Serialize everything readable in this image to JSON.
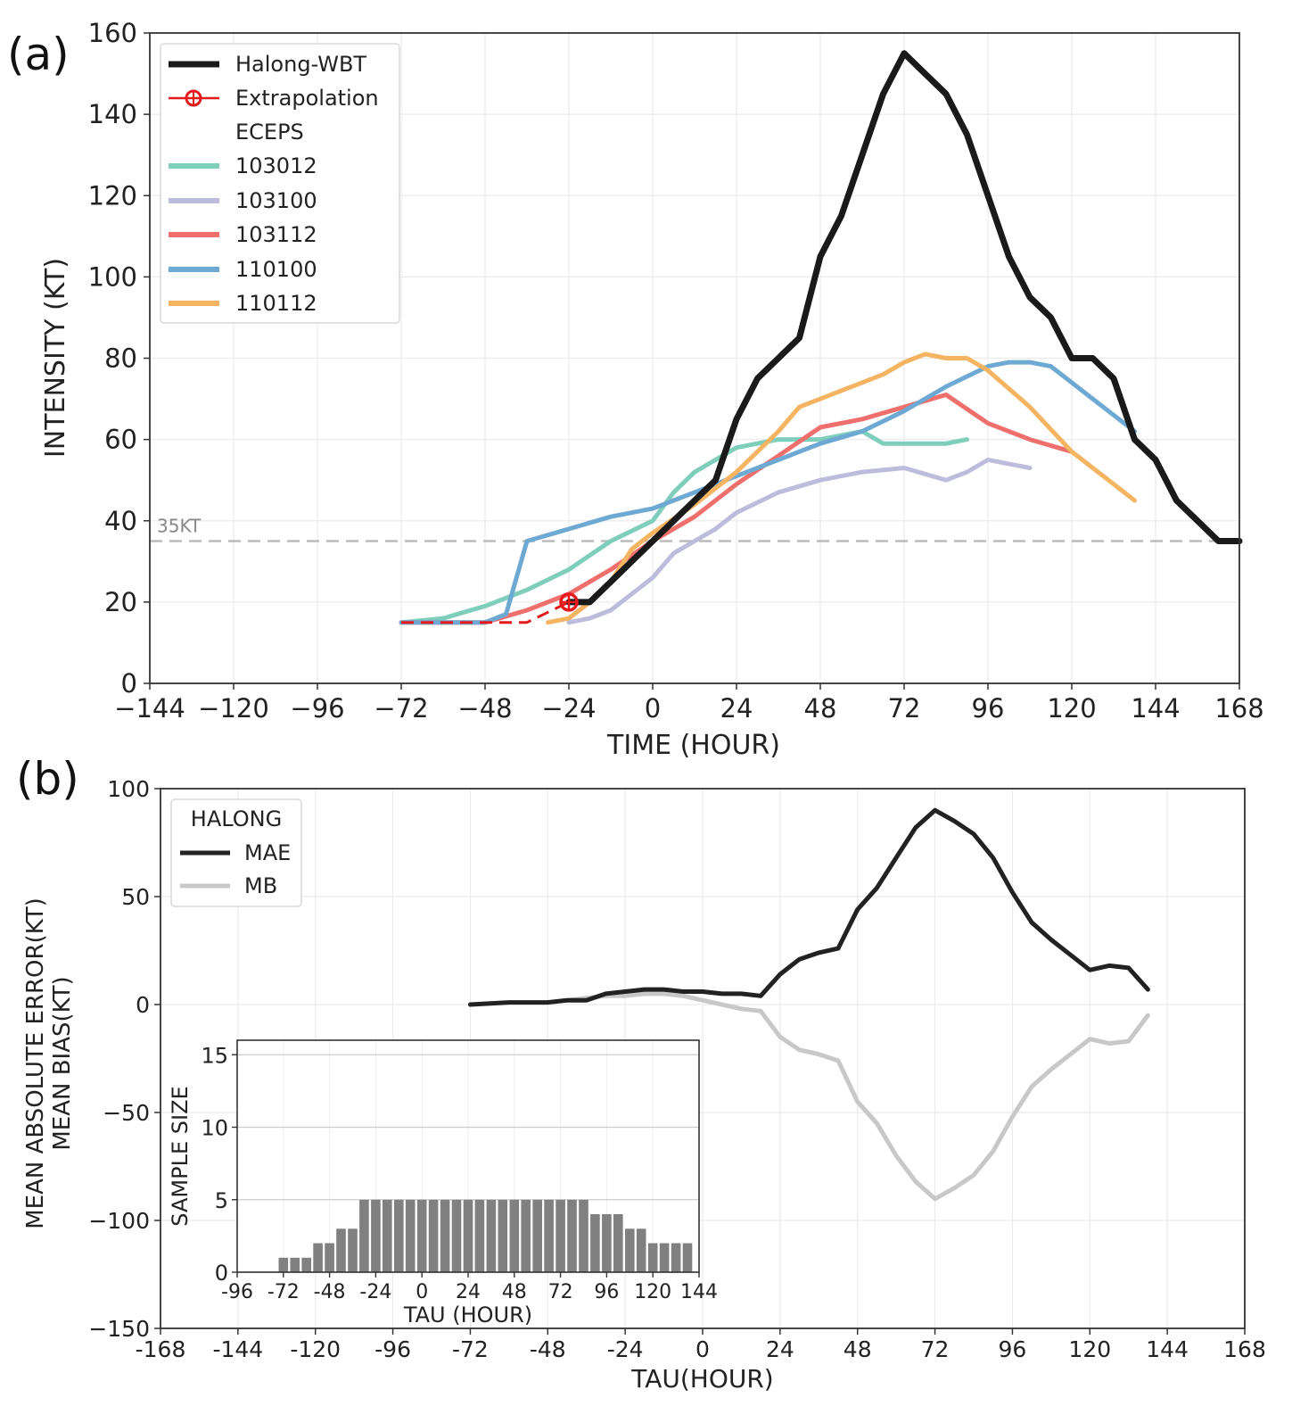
{
  "chart_data": [
    {
      "panel_label": "(a)",
      "type": "line",
      "xlabel": "TIME (HOUR)",
      "ylabel": "INTENSITY (KT)",
      "xlim": [
        -144,
        168
      ],
      "ylim": [
        0,
        160
      ],
      "x_ticks": [
        -144,
        -120,
        -96,
        -72,
        -48,
        -24,
        0,
        24,
        48,
        72,
        96,
        120,
        144,
        168
      ],
      "x_tick_labels": [
        "−144",
        "−120",
        "−96",
        "−72",
        "−48",
        "−24",
        "0",
        "24",
        "48",
        "72",
        "96",
        "120",
        "144",
        "168"
      ],
      "y_ticks": [
        0,
        20,
        40,
        60,
        80,
        100,
        120,
        140,
        160
      ],
      "y_tick_labels": [
        "0",
        "20",
        "40",
        "60",
        "80",
        "100",
        "120",
        "140",
        "160"
      ],
      "grid": true,
      "legend_position": "top-left",
      "legend_group_title": "ECEPS",
      "reference_line": {
        "y": 35,
        "label": "35KT",
        "color": "#bbbbbb"
      },
      "series": [
        {
          "name": "Halong-WBT",
          "color": "#1a1a1a",
          "x": [
            -24,
            -18,
            -12,
            -6,
            0,
            6,
            12,
            18,
            24,
            30,
            36,
            42,
            48,
            54,
            60,
            66,
            72,
            78,
            84,
            90,
            96,
            102,
            108,
            114,
            120,
            126,
            132,
            138,
            144,
            150,
            156,
            162,
            168
          ],
          "y": [
            20,
            20,
            25,
            30,
            35,
            40,
            45,
            50,
            65,
            75,
            80,
            85,
            105,
            115,
            130,
            145,
            155,
            150,
            145,
            135,
            120,
            105,
            95,
            90,
            80,
            80,
            75,
            60,
            55,
            45,
            40,
            35,
            35
          ]
        },
        {
          "name": "Extrapolation",
          "color": "#e41a1c",
          "x": [
            -72,
            -60,
            -48,
            -36,
            -24
          ],
          "y": [
            15,
            15,
            15,
            15,
            20
          ]
        },
        {
          "name": "103012",
          "color": "#7fcdbb",
          "x": [
            -72,
            -60,
            -48,
            -36,
            -24,
            -12,
            0,
            6,
            12,
            24,
            36,
            48,
            60,
            66,
            72,
            78,
            84,
            90
          ],
          "y": [
            15,
            16,
            19,
            23,
            28,
            35,
            40,
            47,
            52,
            58,
            60,
            60,
            62,
            59,
            59,
            59,
            59,
            60
          ]
        },
        {
          "name": "103100",
          "color": "#bcbddc",
          "x": [
            -24,
            -18,
            -12,
            -6,
            0,
            6,
            12,
            18,
            24,
            36,
            48,
            60,
            72,
            84,
            90,
            96,
            108
          ],
          "y": [
            15,
            16,
            18,
            22,
            26,
            32,
            35,
            38,
            42,
            47,
            50,
            52,
            53,
            50,
            52,
            55,
            53
          ]
        },
        {
          "name": "103112",
          "color": "#ef6f6c",
          "x": [
            -72,
            -60,
            -48,
            -36,
            -24,
            -12,
            0,
            12,
            24,
            36,
            48,
            60,
            72,
            84,
            96,
            108,
            120
          ],
          "y": [
            15,
            15,
            15,
            18,
            22,
            28,
            35,
            41,
            49,
            56,
            63,
            65,
            68,
            71,
            64,
            60,
            57
          ]
        },
        {
          "name": "110100",
          "color": "#6ea9d4",
          "x": [
            -72,
            -60,
            -48,
            -42,
            -36,
            -24,
            -12,
            0,
            12,
            24,
            36,
            48,
            60,
            72,
            84,
            96,
            102,
            108,
            114,
            120,
            126,
            132,
            138
          ],
          "y": [
            15,
            15,
            15,
            17,
            35,
            38,
            41,
            43,
            47,
            51,
            55,
            59,
            62,
            67,
            73,
            78,
            79,
            79,
            78,
            74,
            70,
            66,
            62
          ]
        },
        {
          "name": "110112",
          "color": "#f5b462",
          "x": [
            -30,
            -24,
            -18,
            -12,
            -6,
            0,
            12,
            24,
            36,
            42,
            48,
            60,
            66,
            72,
            78,
            84,
            90,
            96,
            108,
            120,
            132,
            138
          ],
          "y": [
            15,
            16,
            20,
            25,
            33,
            37,
            44,
            52,
            62,
            68,
            70,
            74,
            76,
            79,
            81,
            80,
            80,
            77,
            68,
            57,
            49,
            45
          ]
        }
      ]
    },
    {
      "panel_label": "(b)",
      "type": "line",
      "xlabel": "TAU(HOUR)",
      "ylabel": "MEAN ABSOLUTE ERROR(KT)",
      "ylabel2": "MEAN BIAS(KT)",
      "xlim": [
        -168,
        168
      ],
      "ylim": [
        -150,
        100
      ],
      "x_ticks": [
        -168,
        -144,
        -120,
        -96,
        -72,
        -48,
        -24,
        0,
        24,
        48,
        72,
        96,
        120,
        144,
        168
      ],
      "x_tick_labels": [
        "-168",
        "-144",
        "-120",
        "-96",
        "-72",
        "-48",
        "-24",
        "0",
        "24",
        "48",
        "72",
        "96",
        "120",
        "144",
        "168"
      ],
      "y_ticks": [
        100,
        50,
        0,
        -50,
        -100,
        -150
      ],
      "y_tick_labels": [
        "100",
        "50",
        "0",
        "−50",
        "−100",
        "−150"
      ],
      "grid": true,
      "legend_position": "top-left",
      "legend_title": "HALONG",
      "series": [
        {
          "name": "MAE",
          "color": "#222222",
          "x": [
            -72,
            -60,
            -48,
            -42,
            -36,
            -30,
            -24,
            -18,
            -12,
            -6,
            0,
            6,
            12,
            18,
            24,
            30,
            36,
            42,
            48,
            54,
            60,
            66,
            72,
            78,
            84,
            90,
            96,
            102,
            108,
            114,
            120,
            126,
            132,
            138
          ],
          "y": [
            0,
            1,
            1,
            2,
            2,
            5,
            6,
            7,
            7,
            6,
            6,
            5,
            5,
            4,
            14,
            21,
            24,
            26,
            44,
            54,
            68,
            82,
            90,
            85,
            79,
            68,
            52,
            38,
            30,
            23,
            16,
            18,
            17,
            7
          ]
        },
        {
          "name": "MB",
          "color": "#c8c8c8",
          "x": [
            -42,
            -36,
            -30,
            -24,
            -18,
            -12,
            -6,
            0,
            6,
            12,
            18,
            24,
            30,
            36,
            42,
            48,
            54,
            60,
            66,
            72,
            78,
            84,
            90,
            96,
            102,
            108,
            114,
            120,
            126,
            132,
            138
          ],
          "y": [
            2,
            3,
            4,
            4,
            5,
            5,
            4,
            2,
            0,
            -2,
            -3,
            -15,
            -21,
            -23,
            -26,
            -45,
            -55,
            -70,
            -82,
            -90,
            -85,
            -79,
            -68,
            -52,
            -38,
            -30,
            -23,
            -16,
            -18,
            -17,
            -5
          ]
        }
      ],
      "inset": {
        "type": "bar",
        "xlabel": "TAU (HOUR)",
        "ylabel": "SAMPLE SIZE",
        "xlim": [
          -96,
          144
        ],
        "ylim": [
          0,
          16
        ],
        "x_ticks": [
          -96,
          -72,
          -48,
          -24,
          0,
          24,
          48,
          72,
          96,
          120,
          144
        ],
        "x_tick_labels": [
          "-96",
          "-72",
          "-48",
          "-24",
          "0",
          "24",
          "48",
          "72",
          "96",
          "120",
          "144"
        ],
        "y_ticks": [
          0,
          5,
          10,
          15
        ],
        "y_tick_labels": [
          "0",
          "5",
          "10",
          "15"
        ],
        "bar_color": "#808080",
        "x": [
          -72,
          -66,
          -60,
          -54,
          -48,
          -42,
          -36,
          -30,
          -24,
          -18,
          -12,
          -6,
          0,
          6,
          12,
          18,
          24,
          30,
          36,
          42,
          48,
          54,
          60,
          66,
          72,
          78,
          84,
          90,
          96,
          102,
          108,
          114,
          120,
          126,
          132,
          138
        ],
        "values": [
          1,
          1,
          1,
          2,
          2,
          3,
          3,
          5,
          5,
          5,
          5,
          5,
          5,
          5,
          5,
          5,
          5,
          5,
          5,
          5,
          5,
          5,
          5,
          5,
          5,
          5,
          5,
          4,
          4,
          4,
          3,
          3,
          2,
          2,
          2,
          2
        ]
      }
    }
  ]
}
